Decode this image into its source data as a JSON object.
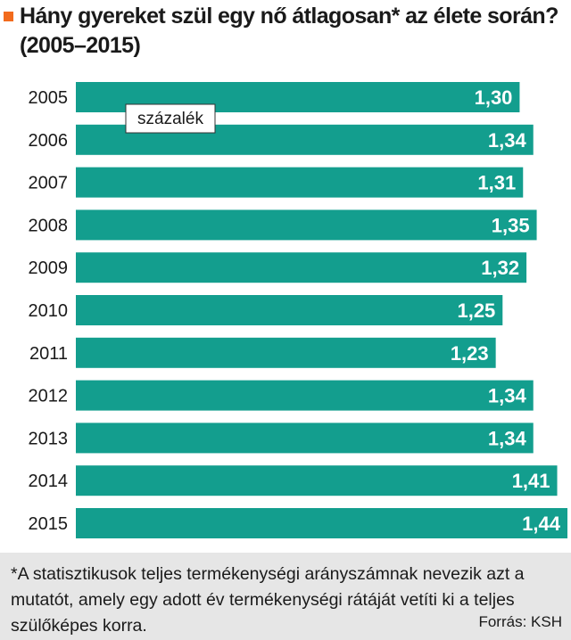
{
  "title": "Hány gyereket szül egy nő átlagosan* az élete során? (2005–2015)",
  "footnote": "*A statisztikusok teljes termékenységi arányszámnak nevezik azt a mutatót, amely egy adott év termékenységi rátáját vetíti ki a teljes szülőképes korra.",
  "source": "Forrás: KSH",
  "colors": {
    "bar": "#139e8e",
    "accent": "#f26b1d",
    "footer_bg": "#e6e6e6"
  },
  "chart_data": {
    "type": "bar",
    "orientation": "horizontal",
    "categories": [
      "2005",
      "2006",
      "2007",
      "2008",
      "2009",
      "2010",
      "2011",
      "2012",
      "2013",
      "2014",
      "2015"
    ],
    "values": [
      1.3,
      1.34,
      1.31,
      1.35,
      1.32,
      1.25,
      1.23,
      1.34,
      1.34,
      1.41,
      1.44
    ],
    "value_labels": [
      "1,30",
      "1,34",
      "1,31",
      "1,35",
      "1,32",
      "1,25",
      "1,23",
      "1,34",
      "1,34",
      "1,41",
      "1,44"
    ],
    "unit_label": "százalék",
    "xlim": [
      0,
      1.44
    ],
    "grid": false,
    "title": "Hány gyereket szül egy nő átlagosan* az élete során? (2005–2015)"
  }
}
